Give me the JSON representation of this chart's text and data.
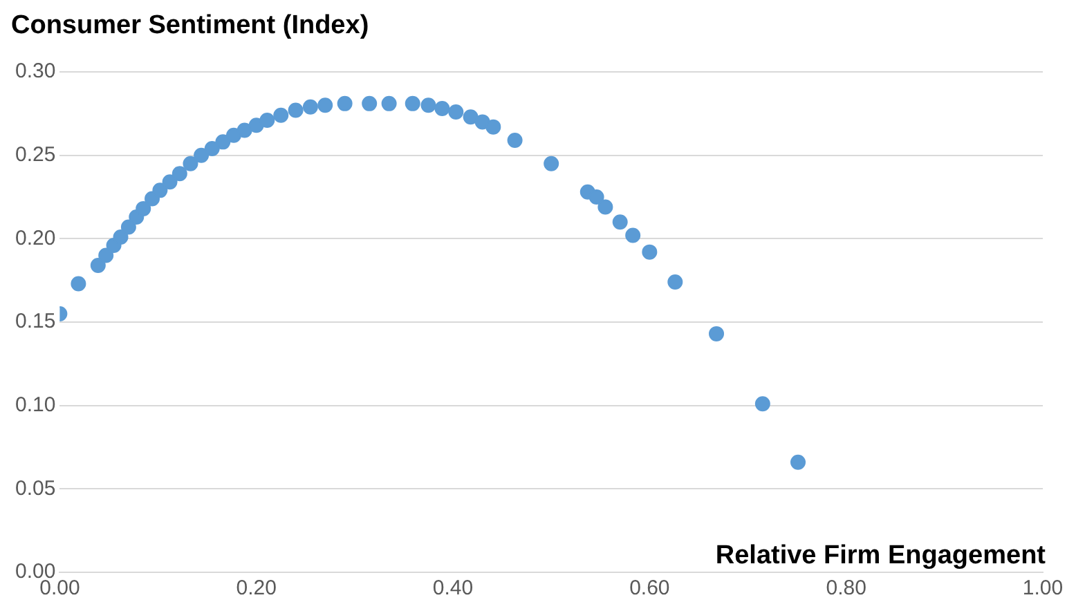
{
  "chart_data": {
    "type": "scatter",
    "title": "Consumer Sentiment (Index)",
    "xlabel": "Relative Firm Engagement",
    "x": [
      0.0,
      0.019,
      0.039,
      0.047,
      0.055,
      0.062,
      0.07,
      0.078,
      0.085,
      0.094,
      0.102,
      0.112,
      0.122,
      0.133,
      0.144,
      0.155,
      0.166,
      0.177,
      0.188,
      0.2,
      0.211,
      0.225,
      0.24,
      0.255,
      0.27,
      0.29,
      0.315,
      0.335,
      0.359,
      0.375,
      0.389,
      0.403,
      0.418,
      0.43,
      0.441,
      0.463,
      0.5,
      0.537,
      0.546,
      0.555,
      0.57,
      0.583,
      0.6,
      0.626,
      0.668,
      0.715,
      0.751
    ],
    "series": [
      {
        "color": "#5b9bd5",
        "values": [
          0.155,
          0.173,
          0.184,
          0.19,
          0.196,
          0.201,
          0.207,
          0.213,
          0.218,
          0.224,
          0.229,
          0.234,
          0.239,
          0.245,
          0.25,
          0.254,
          0.258,
          0.262,
          0.265,
          0.268,
          0.271,
          0.274,
          0.277,
          0.279,
          0.28,
          0.281,
          0.281,
          0.281,
          0.281,
          0.28,
          0.278,
          0.276,
          0.273,
          0.27,
          0.267,
          0.259,
          0.245,
          0.228,
          0.225,
          0.219,
          0.21,
          0.202,
          0.192,
          0.174,
          0.143,
          0.101,
          0.066
        ]
      }
    ],
    "xlim": [
      0,
      1
    ],
    "xticks": [
      {
        "value": 0,
        "label": "0.00"
      },
      {
        "value": 0.2,
        "label": "0.20"
      },
      {
        "value": 0.4,
        "label": "0.40"
      },
      {
        "value": 0.6,
        "label": "0.60"
      },
      {
        "value": 0.8,
        "label": "0.80"
      },
      {
        "value": 1,
        "label": "1.00"
      }
    ],
    "ylim": [
      0,
      0.3
    ],
    "yticks": [
      {
        "value": 0,
        "label": "0.00"
      },
      {
        "value": 0.05,
        "label": "0.05"
      },
      {
        "value": 0.1,
        "label": "0.10"
      },
      {
        "value": 0.15,
        "label": "0.15"
      },
      {
        "value": 0.2,
        "label": "0.20"
      },
      {
        "value": 0.25,
        "label": "0.25"
      },
      {
        "value": 0.3,
        "label": "0.30"
      }
    ],
    "grid": "y",
    "legend": false,
    "marker": "circle"
  }
}
